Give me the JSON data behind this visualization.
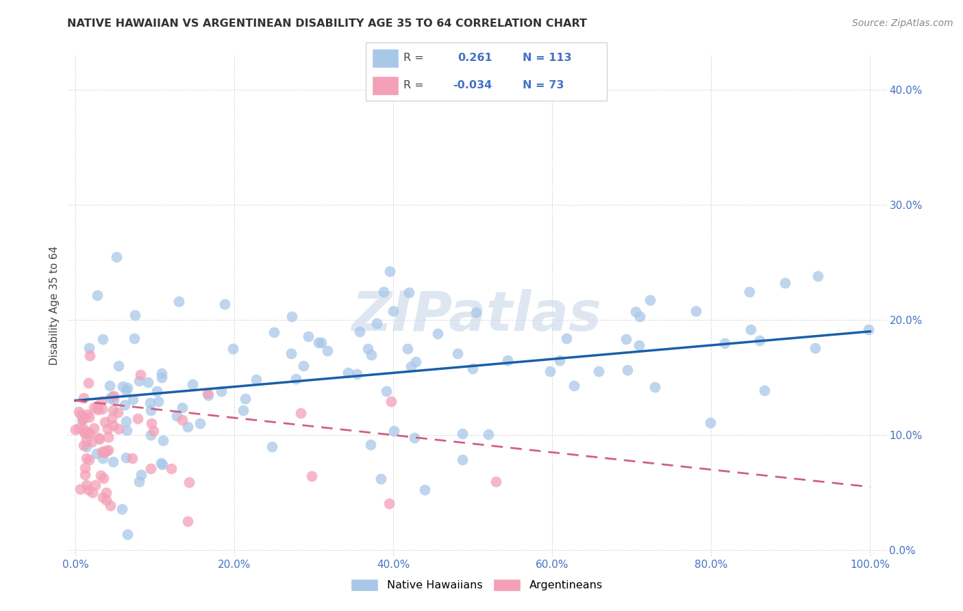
{
  "title": "NATIVE HAWAIIAN VS ARGENTINEAN DISABILITY AGE 35 TO 64 CORRELATION CHART",
  "source": "Source: ZipAtlas.com",
  "ylabel_label": "Disability Age 35 to 64",
  "legend_label1": "Native Hawaiians",
  "legend_label2": "Argentineans",
  "r1": 0.261,
  "n1": 113,
  "r2": -0.034,
  "n2": 73,
  "blue_color": "#a8c8e8",
  "pink_color": "#f4a0b8",
  "line_blue": "#1a5fa8",
  "line_pink": "#d06080",
  "watermark": "ZIPatlas",
  "watermark_color": "#c8d8e8",
  "blue_line_start_y": 0.13,
  "blue_line_end_y": 0.19,
  "pink_line_start_y": 0.13,
  "pink_line_end_y": 0.055,
  "x_min": 0.0,
  "x_max": 1.0,
  "y_min": 0.0,
  "y_max": 0.42,
  "xtick_vals": [
    0.0,
    0.2,
    0.4,
    0.6,
    0.8,
    1.0
  ],
  "xtick_labels": [
    "0.0%",
    "20.0%",
    "40.0%",
    "60.0%",
    "80.0%",
    "100.0%"
  ],
  "ytick_vals": [
    0.0,
    0.1,
    0.2,
    0.3,
    0.4
  ],
  "ytick_labels": [
    "0.0%",
    "10.0%",
    "20.0%",
    "30.0%",
    "40.0%"
  ],
  "tick_color": "#4472c4",
  "grid_color": "#cccccc",
  "title_color": "#333333",
  "source_color": "#888888"
}
